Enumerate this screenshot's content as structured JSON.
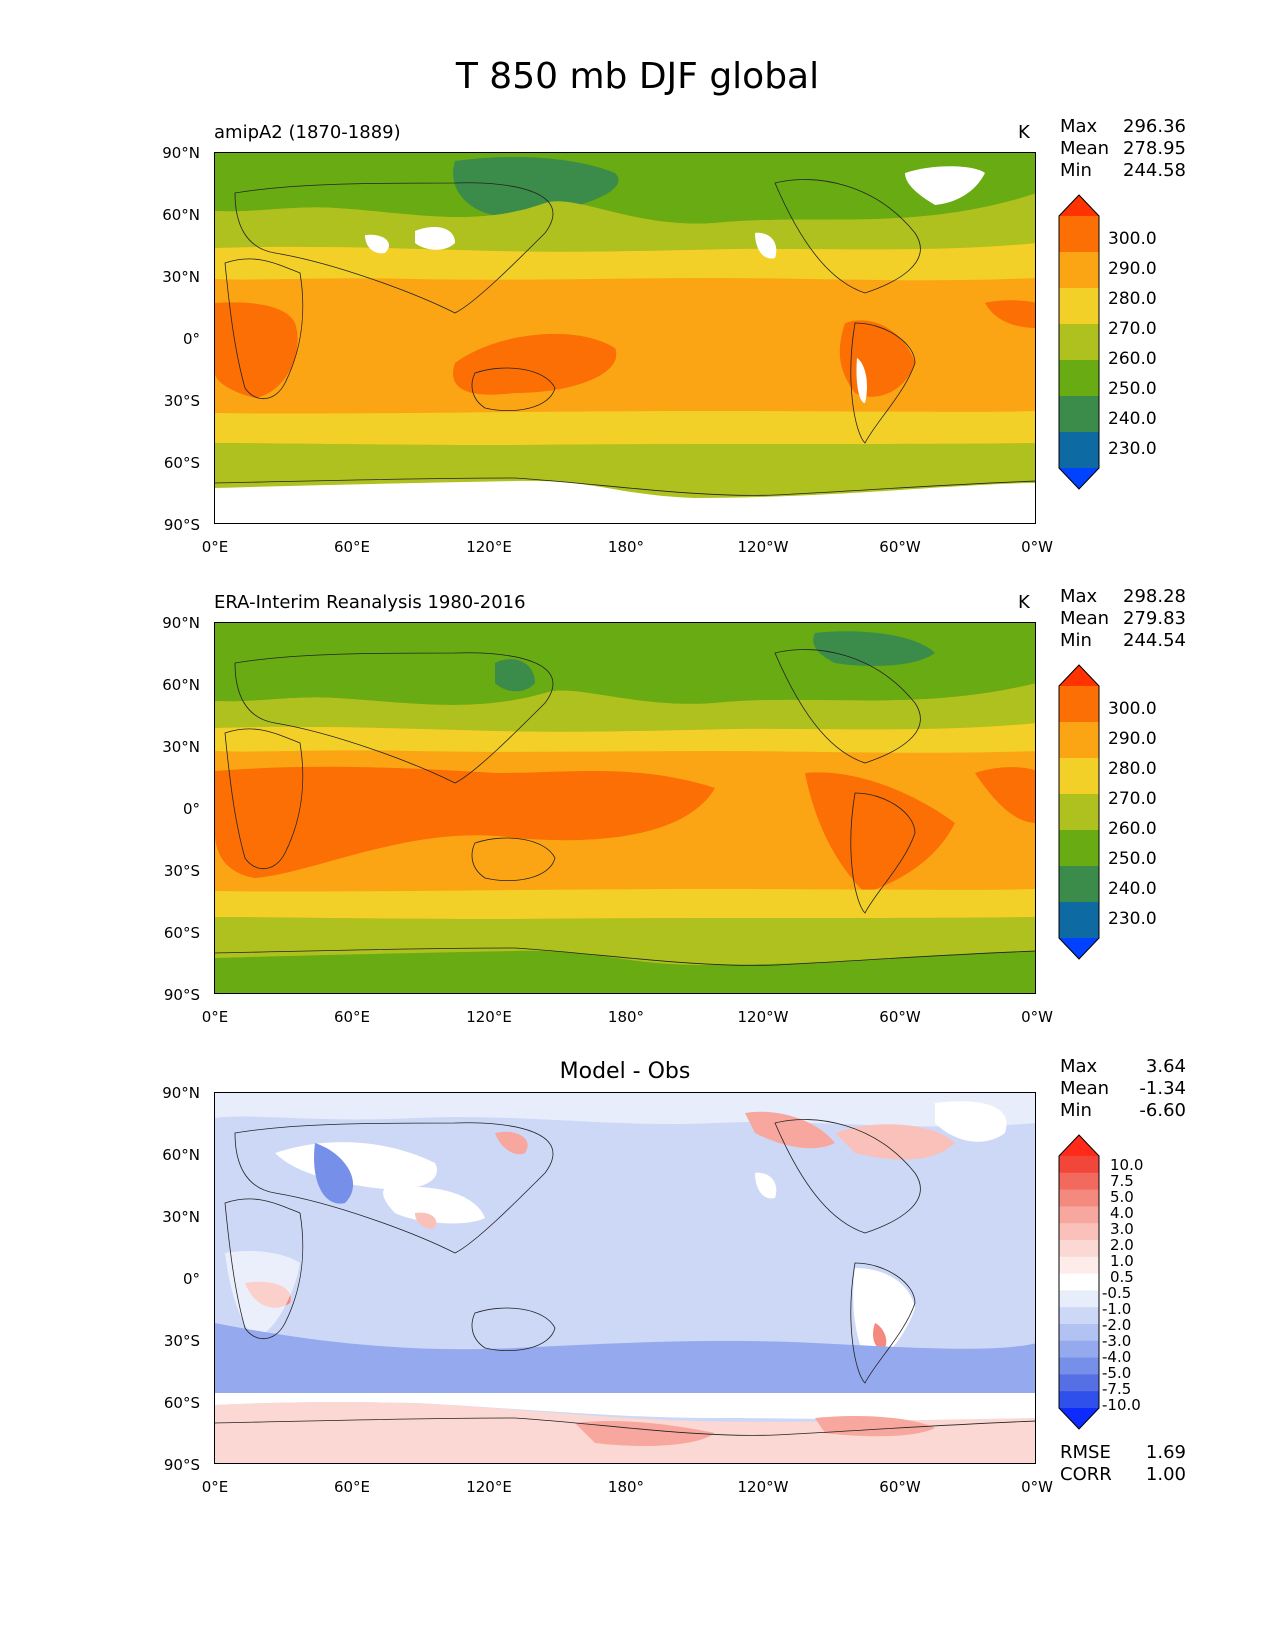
{
  "title": "T 850 mb DJF global",
  "x_ticks": [
    "0°E",
    "60°E",
    "120°E",
    "180°",
    "120°W",
    "60°W",
    "0°W"
  ],
  "y_ticks": [
    "90°N",
    "60°N",
    "30°N",
    "0°",
    "30°S",
    "60°S",
    "90°S"
  ],
  "panels": [
    {
      "label": "amipA2 (1870-1889)",
      "units": "K",
      "stats": {
        "max_label": "Max",
        "max": "296.36",
        "mean_label": "Mean",
        "mean": "278.95",
        "min_label": "Min",
        "min": "244.58"
      },
      "colorbar": {
        "labels": [
          "300.0",
          "290.0",
          "280.0",
          "270.0",
          "260.0",
          "250.0",
          "240.0",
          "230.0"
        ],
        "colors": [
          "#ff3300",
          "#fb6f04",
          "#fca514",
          "#f3d027",
          "#aec11e",
          "#68ab12",
          "#3b8c4b",
          "#0e6aa2",
          "#0042ff"
        ]
      }
    },
    {
      "label": "ERA-Interim Reanalysis 1980-2016",
      "units": "K",
      "stats": {
        "max_label": "Max",
        "max": "298.28",
        "mean_label": "Mean",
        "mean": "279.83",
        "min_label": "Min",
        "min": "244.54"
      },
      "colorbar": {
        "labels": [
          "300.0",
          "290.0",
          "280.0",
          "270.0",
          "260.0",
          "250.0",
          "240.0",
          "230.0"
        ],
        "colors": [
          "#ff3300",
          "#fb6f04",
          "#fca514",
          "#f3d027",
          "#aec11e",
          "#68ab12",
          "#3b8c4b",
          "#0e6aa2",
          "#0042ff"
        ]
      }
    },
    {
      "label": "Model - Obs",
      "stats": {
        "max_label": "Max",
        "max": "3.64",
        "mean_label": "Mean",
        "mean": "-1.34",
        "min_label": "Min",
        "min": "-6.60"
      },
      "colorbar": {
        "labels": [
          "10.0",
          "7.5",
          "5.0",
          "4.0",
          "3.0",
          "2.0",
          "1.0",
          "0.5",
          "-0.5",
          "-1.0",
          "-2.0",
          "-3.0",
          "-4.0",
          "-5.0",
          "-7.5",
          "-10.0"
        ],
        "colors": [
          "#ff2a1a",
          "#f2463a",
          "#f26a5d",
          "#f48a7e",
          "#f7a79e",
          "#f9c1ba",
          "#fbd8d3",
          "#fdecea",
          "#ffffff",
          "#e8edfb",
          "#cdd8f7",
          "#b2c2f3",
          "#94a9ee",
          "#768fe9",
          "#566fe4",
          "#3050ec",
          "#0d2aff"
        ]
      },
      "rmse_label": "RMSE",
      "rmse": "1.69",
      "corr_label": "CORR",
      "corr": "1.00"
    }
  ]
}
